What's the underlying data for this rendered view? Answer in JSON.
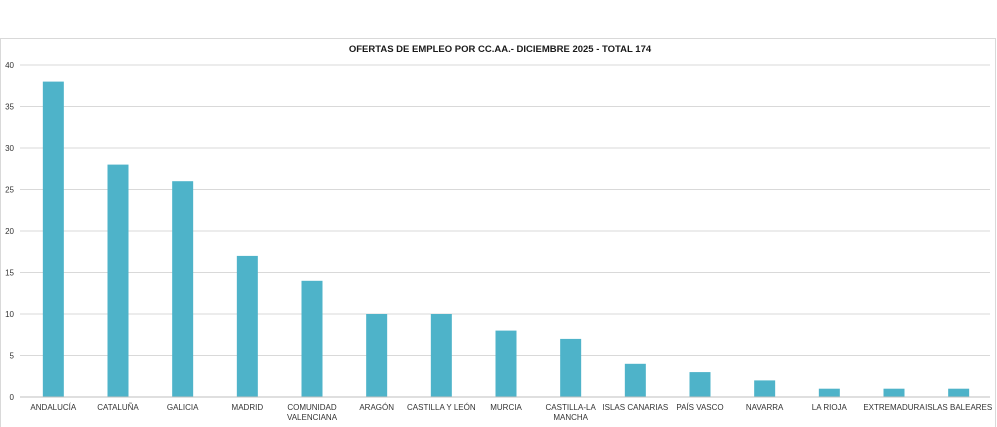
{
  "chart_data": {
    "type": "bar",
    "title": "OFERTAS DE EMPLEO POR CC.AA.- DICIEMBRE 2025 - TOTAL 174",
    "xlabel": "",
    "ylabel": "",
    "ylim": [
      0,
      40
    ],
    "yticks": [
      "0",
      "5",
      "10",
      "15",
      "20",
      "25",
      "30",
      "35",
      "40"
    ],
    "grid": true,
    "bar_color": "#4eb3c9",
    "categories": [
      [
        "ANDALUCÍA"
      ],
      [
        "CATALUÑA"
      ],
      [
        "GALICIA"
      ],
      [
        "MADRID"
      ],
      [
        "COMUNIDAD",
        "VALENCIANA"
      ],
      [
        "ARAGÓN"
      ],
      [
        "CASTILLA Y LEÓN"
      ],
      [
        "MURCIA"
      ],
      [
        "CASTILLA-LA",
        "MANCHA"
      ],
      [
        "ISLAS CANARIAS"
      ],
      [
        "PAÍS VASCO"
      ],
      [
        "NAVARRA"
      ],
      [
        "LA RIOJA"
      ],
      [
        "EXTREMADURA"
      ],
      [
        "ISLAS BALEARES"
      ]
    ],
    "values": [
      38,
      28,
      26,
      17,
      14,
      10,
      10,
      8,
      7,
      4,
      3,
      2,
      1,
      1,
      1
    ]
  }
}
